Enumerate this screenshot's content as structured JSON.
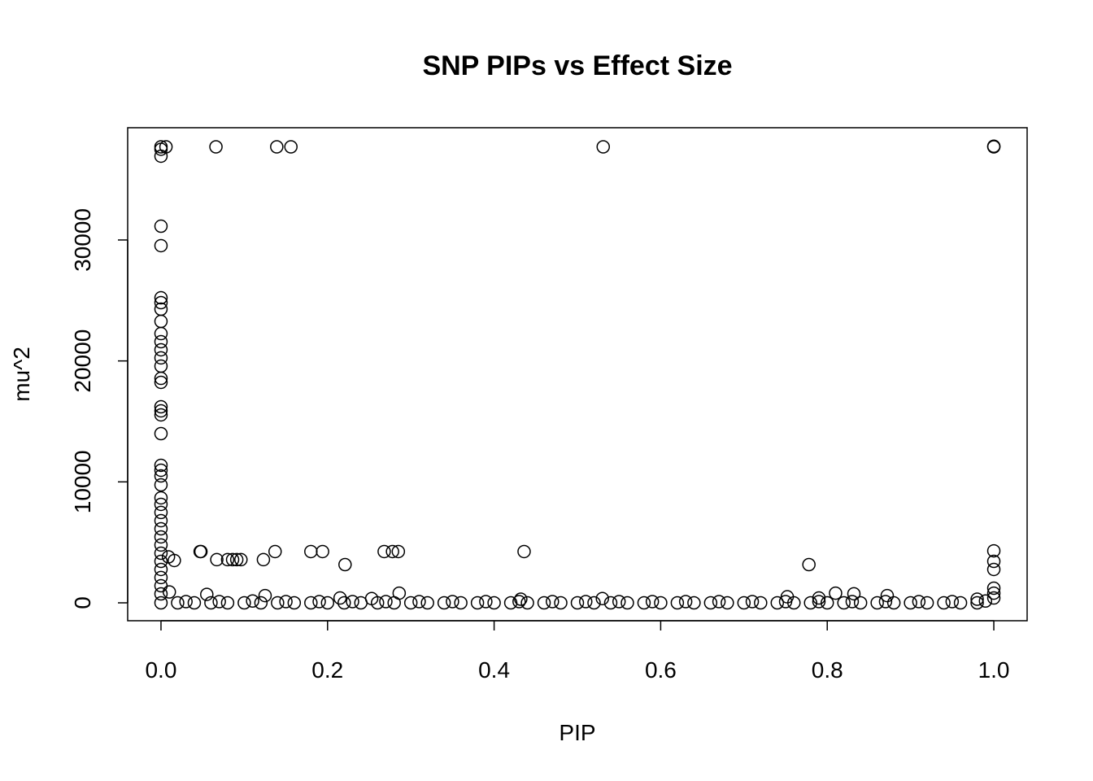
{
  "chart_data": {
    "type": "scatter",
    "title": "SNP PIPs vs Effect Size",
    "x_label": "PIP",
    "y_label": "mu^2",
    "xlim": [
      -0.04,
      1.04
    ],
    "ylim": [
      -1480,
      39280
    ],
    "xticks": [
      {
        "value": 0,
        "label": "0.0"
      },
      0.2,
      0.4,
      0.6,
      0.8,
      {
        "value": 1,
        "label": "1.0"
      }
    ],
    "yticks": [
      0,
      10000,
      20000,
      30000
    ],
    "color": "#000000",
    "series": [
      {
        "name": "SNP",
        "x": [
          0,
          0,
          0,
          0,
          0,
          0,
          0,
          0,
          0,
          0,
          0,
          0,
          0,
          0,
          0,
          0,
          0,
          0,
          0,
          0,
          0,
          0,
          0,
          0,
          0,
          0,
          0,
          0,
          0,
          0,
          0,
          0,
          0,
          0,
          0,
          0,
          0,
          0,
          0.006,
          0.066,
          0.139,
          0.156,
          0.531,
          1.0,
          1.0,
          0.009,
          0.016,
          0.047,
          0.048,
          0.067,
          0.08,
          0.086,
          0.091,
          0.096,
          0.123,
          0.137,
          0.18,
          0.194,
          0.221,
          0.268,
          0.278,
          0.285,
          0.436,
          0.778,
          1.0,
          1.0,
          1.0,
          1.0,
          1.0,
          1.0,
          0.01,
          0.055,
          0.125,
          0.215,
          0.253,
          0.286,
          0.432,
          0.53,
          0.752,
          0.81,
          0.832,
          0.872,
          0.79,
          0.98,
          0.02,
          0.04,
          0.06,
          0.08,
          0.1,
          0.12,
          0.14,
          0.16,
          0.18,
          0.2,
          0.22,
          0.24,
          0.26,
          0.28,
          0.3,
          0.32,
          0.34,
          0.36,
          0.38,
          0.4,
          0.42,
          0.44,
          0.46,
          0.48,
          0.5,
          0.52,
          0.54,
          0.56,
          0.58,
          0.6,
          0.62,
          0.64,
          0.66,
          0.68,
          0.7,
          0.72,
          0.74,
          0.76,
          0.78,
          0.8,
          0.82,
          0.84,
          0.86,
          0.88,
          0.9,
          0.92,
          0.94,
          0.96,
          0.98,
          0.03,
          0.07,
          0.11,
          0.15,
          0.19,
          0.23,
          0.27,
          0.31,
          0.35,
          0.39,
          0.43,
          0.47,
          0.51,
          0.55,
          0.59,
          0.63,
          0.67,
          0.71,
          0.75,
          0.79,
          0.83,
          0.87,
          0.91,
          0.95,
          0.99
        ],
        "values": [
          37700,
          37500,
          36930,
          31140,
          29530,
          25220,
          24820,
          24280,
          23270,
          22260,
          21590,
          20920,
          20250,
          19570,
          18560,
          18230,
          16210,
          15870,
          15540,
          13990,
          11370,
          10960,
          10490,
          9750,
          8680,
          8140,
          7470,
          6790,
          6120,
          5450,
          4780,
          4100,
          3430,
          2760,
          2090,
          1410,
          740,
          0,
          37700,
          37700,
          37700,
          37700,
          37700,
          37750,
          37700,
          3800,
          3500,
          4240,
          4240,
          3570,
          3570,
          3570,
          3570,
          3570,
          3570,
          4240,
          4240,
          4240,
          3160,
          4240,
          4240,
          4240,
          4240,
          3160,
          4300,
          3430,
          2760,
          1210,
          800,
          400,
          900,
          700,
          600,
          400,
          350,
          800,
          300,
          350,
          500,
          800,
          750,
          600,
          400,
          300,
          0,
          0,
          0,
          0,
          0,
          0,
          0,
          0,
          0,
          0,
          0,
          0,
          0,
          0,
          0,
          0,
          0,
          0,
          0,
          0,
          0,
          0,
          0,
          0,
          0,
          0,
          0,
          0,
          0,
          0,
          0,
          0,
          0,
          0,
          0,
          0,
          0,
          0,
          0,
          0,
          0,
          0,
          0,
          0,
          0,
          0,
          0,
          0,
          0,
          100,
          100,
          150,
          100,
          100,
          100,
          100,
          100,
          100,
          100,
          100,
          100,
          100,
          100,
          100,
          100,
          100,
          100,
          100,
          100,
          100,
          100,
          100,
          100,
          150
        ]
      }
    ]
  }
}
